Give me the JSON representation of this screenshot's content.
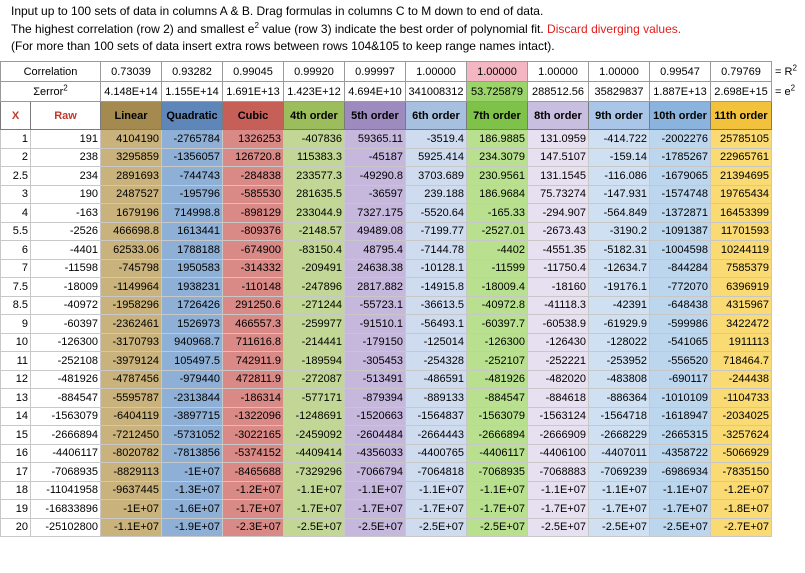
{
  "notes": {
    "line1": "Input up to 100 sets of data in columns A & B. Drag formulas in columns C to M down to end of data.",
    "line2_a": "The highest correlation (row 2) and smallest e",
    "line2_sup": "2",
    "line2_b": " value (row 3) indicate the best order of polynomial fit.",
    "line2_red": " Discard diverging values.",
    "line3": "(For more than 100 sets of data insert extra rows between rows 104&105 to keep range names intact)."
  },
  "stats": {
    "correlation_label": "Correlation",
    "correlation": [
      "0.73039",
      "0.93282",
      "0.99045",
      "0.99920",
      "0.99997",
      "1.00000",
      "1.00000",
      "1.00000",
      "1.00000",
      "0.99547",
      "0.79769"
    ],
    "correlation_unit": "= R",
    "correlation_unit_sup": "2",
    "error_label": "Σerror",
    "error_label_sup": "2",
    "error": [
      "4.148E+14",
      "1.155E+14",
      "1.691E+13",
      "1.423E+12",
      "4.694E+10",
      "341008312",
      "53.725879",
      "288512.56",
      "35829837",
      "1.887E+13",
      "2.698E+15"
    ],
    "error_unit": "= e",
    "error_unit_sup": "2"
  },
  "headers": {
    "x": "X",
    "raw": "Raw",
    "fits": [
      "Linear",
      "Quadratic",
      "Cubic",
      "4th order",
      "5th order",
      "6th order",
      "7th order",
      "8th order",
      "9th order",
      "10th order",
      "11th order"
    ]
  },
  "rows": [
    {
      "x": "1",
      "raw": "191",
      "fits": [
        "4104190",
        "-2765784",
        "1326253",
        "-407836",
        "59365.11",
        "-3519.4",
        "186.9885",
        "131.0959",
        "-414.722",
        "-2002276",
        "25785105"
      ]
    },
    {
      "x": "2",
      "raw": "238",
      "fits": [
        "3295859",
        "-1356057",
        "126720.8",
        "115383.3",
        "-45187",
        "5925.414",
        "234.3079",
        "147.5107",
        "-159.14",
        "-1785267",
        "22965761"
      ]
    },
    {
      "x": "2.5",
      "raw": "234",
      "fits": [
        "2891693",
        "-744743",
        "-284838",
        "233577.3",
        "-49290.8",
        "3703.689",
        "230.9561",
        "131.1545",
        "-116.086",
        "-1679065",
        "21394695"
      ]
    },
    {
      "x": "3",
      "raw": "190",
      "fits": [
        "2487527",
        "-195796",
        "-585530",
        "281635.5",
        "-36597",
        "239.188",
        "186.9684",
        "75.73274",
        "-147.931",
        "-1574748",
        "19765434"
      ]
    },
    {
      "x": "4",
      "raw": "-163",
      "fits": [
        "1679196",
        "714998.8",
        "-898129",
        "233044.9",
        "7327.175",
        "-5520.64",
        "-165.33",
        "-294.907",
        "-564.849",
        "-1372871",
        "16453399"
      ]
    },
    {
      "x": "5.5",
      "raw": "-2526",
      "fits": [
        "466698.8",
        "1613441",
        "-809376",
        "-2148.57",
        "49489.08",
        "-7199.77",
        "-2527.01",
        "-2673.43",
        "-3190.2",
        "-1091387",
        "11701593"
      ]
    },
    {
      "x": "6",
      "raw": "-4401",
      "fits": [
        "62533.06",
        "1788188",
        "-674900",
        "-83150.4",
        "48795.4",
        "-7144.78",
        "-4402",
        "-4551.35",
        "-5182.31",
        "-1004598",
        "10244119"
      ]
    },
    {
      "x": "7",
      "raw": "-11598",
      "fits": [
        "-745798",
        "1950583",
        "-314332",
        "-209491",
        "24638.38",
        "-10128.1",
        "-11599",
        "-11750.4",
        "-12634.7",
        "-844284",
        "7585379"
      ]
    },
    {
      "x": "7.5",
      "raw": "-18009",
      "fits": [
        "-1149964",
        "1938231",
        "-110148",
        "-247896",
        "2817.882",
        "-14915.8",
        "-18009.4",
        "-18160",
        "-19176.1",
        "-772070",
        "6396919"
      ]
    },
    {
      "x": "8.5",
      "raw": "-40972",
      "fits": [
        "-1958296",
        "1726426",
        "291250.6",
        "-271244",
        "-55723.1",
        "-36613.5",
        "-40972.8",
        "-41118.3",
        "-42391",
        "-648438",
        "4315967"
      ]
    },
    {
      "x": "9",
      "raw": "-60397",
      "fits": [
        "-2362461",
        "1526973",
        "466557.3",
        "-259977",
        "-91510.1",
        "-56493.1",
        "-60397.7",
        "-60538.9",
        "-61929.9",
        "-599986",
        "3422472"
      ]
    },
    {
      "x": "10",
      "raw": "-126300",
      "fits": [
        "-3170793",
        "940968.7",
        "711616.8",
        "-214441",
        "-179150",
        "-125014",
        "-126300",
        "-126430",
        "-128022",
        "-541065",
        "1911113"
      ]
    },
    {
      "x": "11",
      "raw": "-252108",
      "fits": [
        "-3979124",
        "105497.5",
        "742911.9",
        "-189594",
        "-305453",
        "-254328",
        "-252107",
        "-252221",
        "-253952",
        "-556520",
        "718464.7"
      ]
    },
    {
      "x": "12",
      "raw": "-481926",
      "fits": [
        "-4787456",
        "-979440",
        "472811.9",
        "-272087",
        "-513491",
        "-486591",
        "-481926",
        "-482020",
        "-483808",
        "-690117",
        "-244438"
      ]
    },
    {
      "x": "13",
      "raw": "-884547",
      "fits": [
        "-5595787",
        "-2313844",
        "-186314",
        "-577171",
        "-879394",
        "-889133",
        "-884547",
        "-884618",
        "-886364",
        "-1010109",
        "-1104733"
      ]
    },
    {
      "x": "14",
      "raw": "-1563079",
      "fits": [
        "-6404119",
        "-3897715",
        "-1322096",
        "-1248691",
        "-1520663",
        "-1564837",
        "-1563079",
        "-1563124",
        "-1564718",
        "-1618947",
        "-2034025"
      ]
    },
    {
      "x": "15",
      "raw": "-2666894",
      "fits": [
        "-7212450",
        "-5731052",
        "-3022165",
        "-2459092",
        "-2604484",
        "-2664443",
        "-2666894",
        "-2666909",
        "-2668229",
        "-2665315",
        "-3257624"
      ]
    },
    {
      "x": "16",
      "raw": "-4406117",
      "fits": [
        "-8020782",
        "-7813856",
        "-5374152",
        "-4409414",
        "-4356033",
        "-4400765",
        "-4406117",
        "-4406100",
        "-4407011",
        "-4358722",
        "-5066929"
      ]
    },
    {
      "x": "17",
      "raw": "-7068935",
      "fits": [
        "-8829113",
        "-1E+07",
        "-8465688",
        "-7329296",
        "-7066794",
        "-7064818",
        "-7068935",
        "-7068883",
        "-7069239",
        "-6986934",
        "-7835150"
      ]
    },
    {
      "x": "18",
      "raw": "-11041958",
      "fits": [
        "-9637445",
        "-1.3E+07",
        "-1.2E+07",
        "-1.1E+07",
        "-1.1E+07",
        "-1.1E+07",
        "-1.1E+07",
        "-1.1E+07",
        "-1.1E+07",
        "-1.1E+07",
        "-1.2E+07"
      ]
    },
    {
      "x": "19",
      "raw": "-16833896",
      "fits": [
        "-1E+07",
        "-1.6E+07",
        "-1.7E+07",
        "-1.7E+07",
        "-1.7E+07",
        "-1.7E+07",
        "-1.7E+07",
        "-1.7E+07",
        "-1.7E+07",
        "-1.7E+07",
        "-1.8E+07"
      ]
    },
    {
      "x": "20",
      "raw": "-25102800",
      "fits": [
        "-1.1E+07",
        "-1.9E+07",
        "-2.3E+07",
        "-2.5E+07",
        "-2.5E+07",
        "-2.5E+07",
        "-2.5E+07",
        "-2.5E+07",
        "-2.5E+07",
        "-2.5E+07",
        "-2.7E+07"
      ]
    }
  ]
}
